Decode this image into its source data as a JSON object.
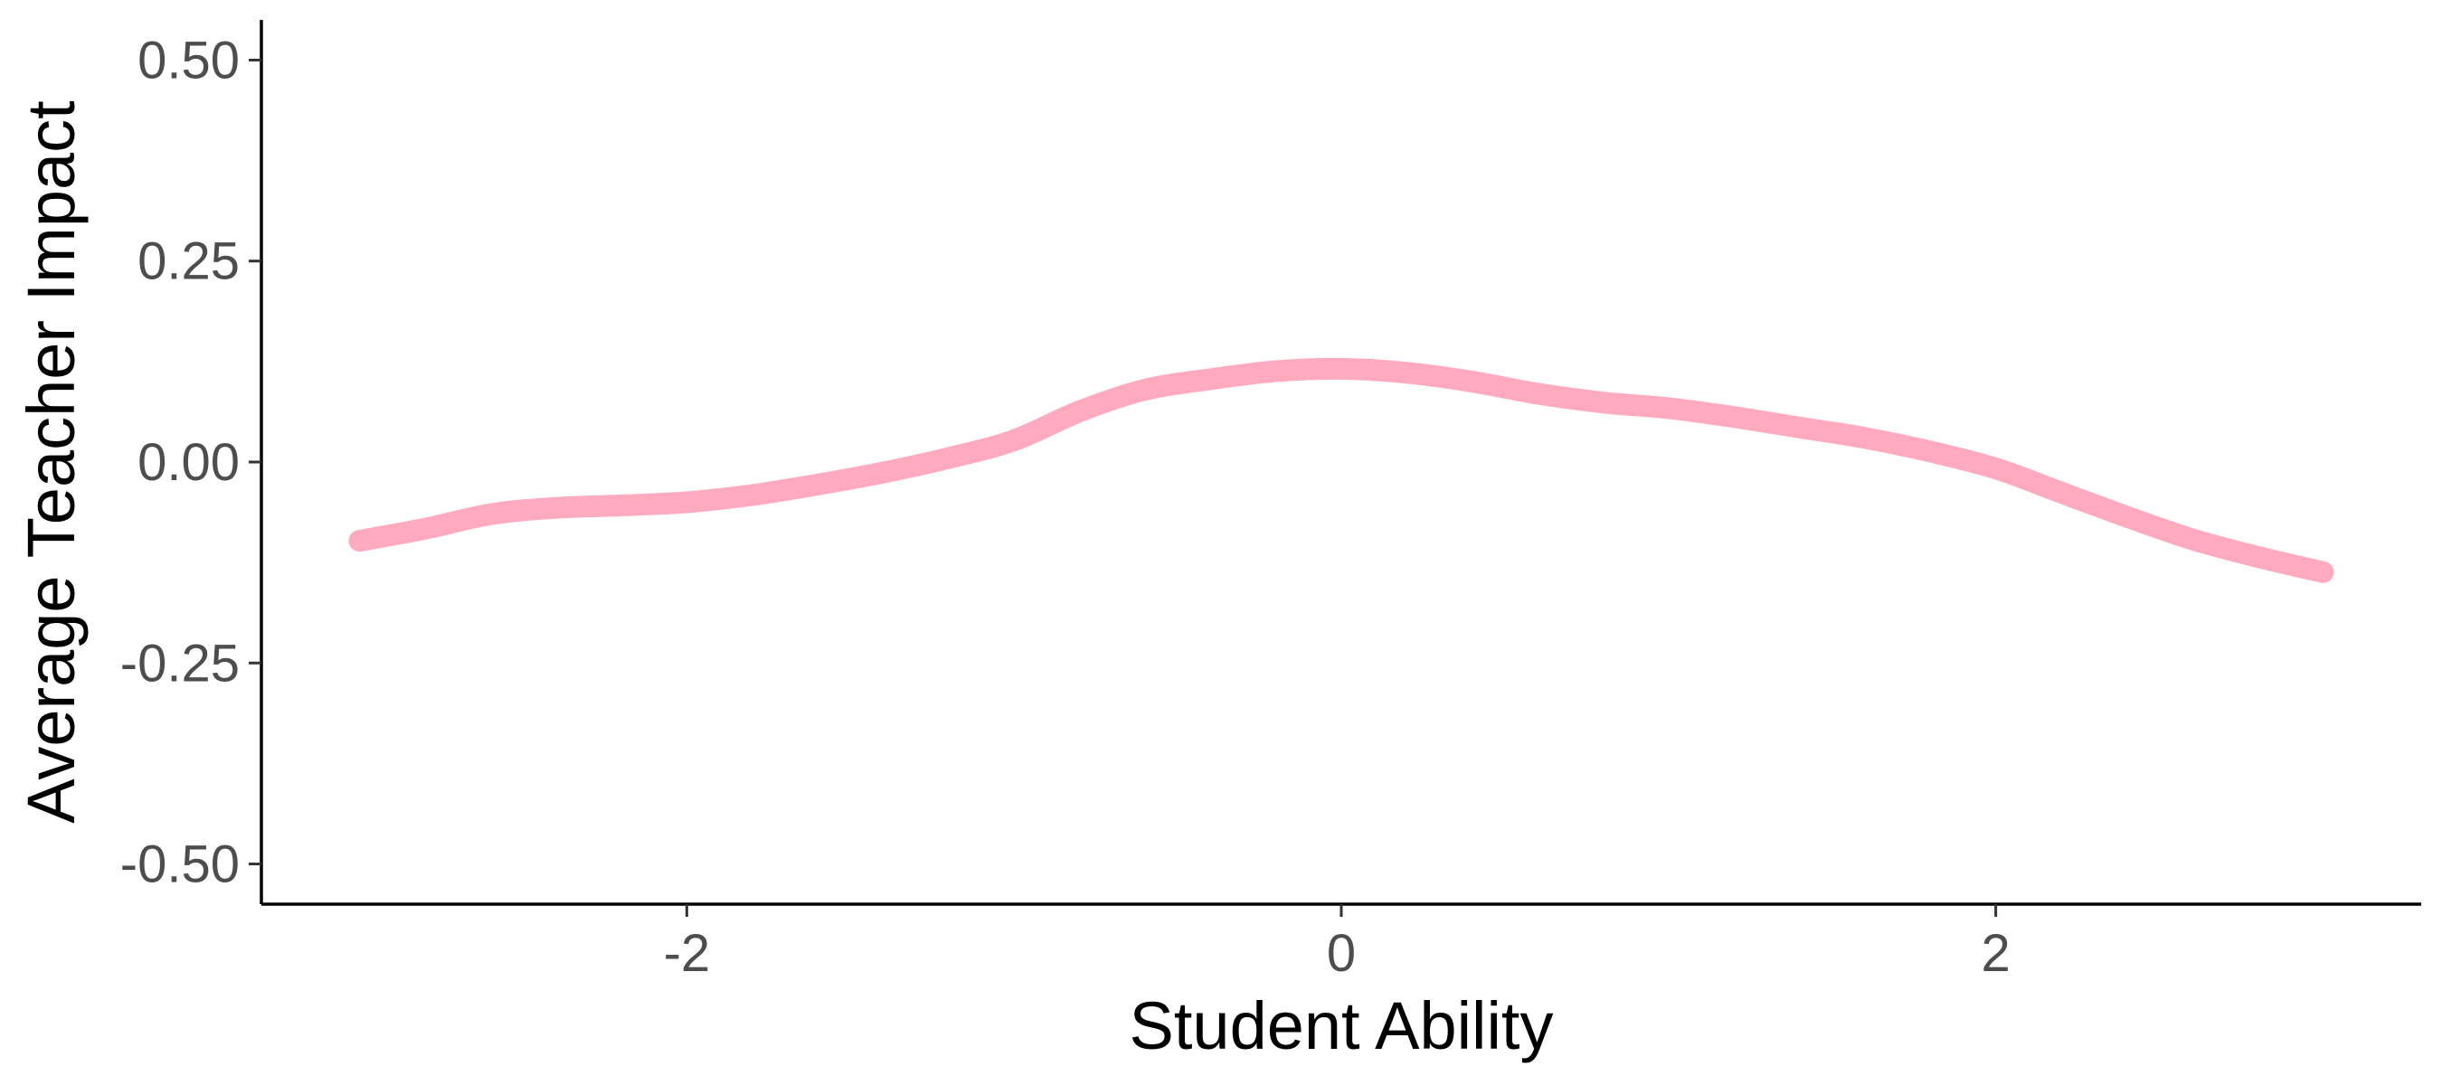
{
  "chart_data": {
    "type": "line",
    "xlabel": "Student Ability",
    "ylabel": "Average Teacher Impact",
    "xlim": [
      -3.3,
      3.3
    ],
    "ylim": [
      -0.55,
      0.55
    ],
    "x_ticks": [
      {
        "value": -2,
        "label": "-2"
      },
      {
        "value": 0,
        "label": "0"
      },
      {
        "value": 2,
        "label": "2"
      }
    ],
    "y_ticks": [
      {
        "value": 0.5,
        "label": "0.50"
      },
      {
        "value": 0.25,
        "label": "0.25"
      },
      {
        "value": 0.0,
        "label": "0.00"
      },
      {
        "value": -0.25,
        "label": "-0.25"
      },
      {
        "value": -0.5,
        "label": "-0.50"
      }
    ],
    "grid": false,
    "legend": "none",
    "series": [
      {
        "color": "#ffaabf",
        "x": [
          -3.0,
          -2.8,
          -2.6,
          -2.4,
          -2.2,
          -2.0,
          -1.8,
          -1.6,
          -1.4,
          -1.2,
          -1.0,
          -0.8,
          -0.6,
          -0.4,
          -0.2,
          0.0,
          0.2,
          0.4,
          0.6,
          0.8,
          1.0,
          1.2,
          1.4,
          1.6,
          1.8,
          2.0,
          2.2,
          2.4,
          2.6,
          2.8,
          3.0
        ],
        "y": [
          -0.098,
          -0.083,
          -0.065,
          -0.057,
          -0.054,
          -0.05,
          -0.041,
          -0.028,
          -0.013,
          0.005,
          0.027,
          0.063,
          0.09,
          0.103,
          0.113,
          0.116,
          0.111,
          0.1,
          0.085,
          0.074,
          0.067,
          0.056,
          0.043,
          0.03,
          0.013,
          -0.008,
          -0.038,
          -0.068,
          -0.096,
          -0.118,
          -0.137
        ]
      }
    ]
  }
}
